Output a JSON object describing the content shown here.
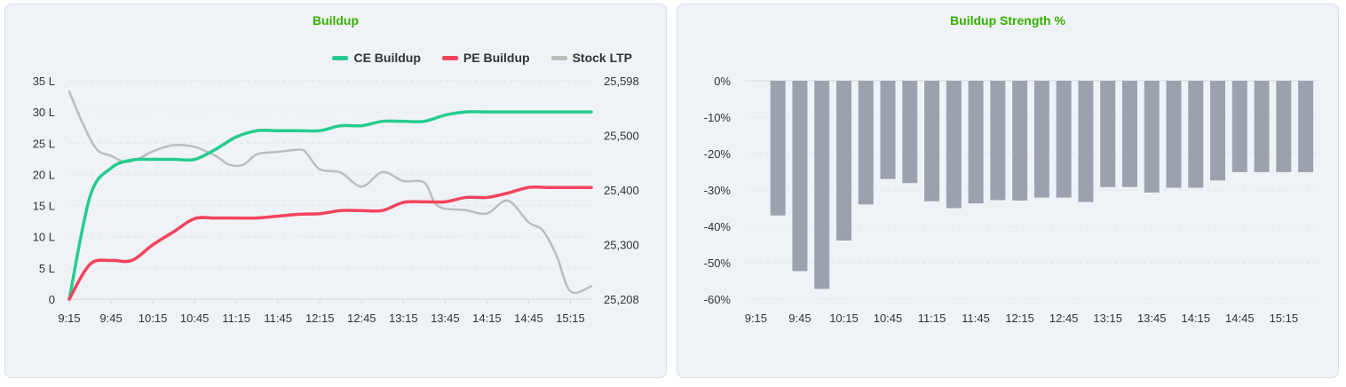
{
  "colors": {
    "ce": "#26cc8e",
    "pe": "#f2445b",
    "stock": "#bdbdbd",
    "bar": "#9ca2ad",
    "title": "#36b000"
  },
  "chart_data": [
    {
      "type": "line",
      "title": "Buildup",
      "legend_position": "top-right",
      "grid": true,
      "x_ticks": [
        "9:15",
        "9:45",
        "10:15",
        "10:45",
        "11:15",
        "11:45",
        "12:15",
        "12:45",
        "13:15",
        "13:45",
        "14:15",
        "14:45",
        "15:15"
      ],
      "y_left": {
        "ticks": [
          "0",
          "5 L",
          "10 L",
          "15 L",
          "20 L",
          "25 L",
          "30 L",
          "35 L"
        ],
        "range": [
          0,
          35
        ],
        "unit": "L"
      },
      "y_right": {
        "ticks": [
          "25,208",
          "25,300",
          "25,400",
          "25,500",
          "25,598"
        ],
        "range": [
          25208,
          25598
        ]
      },
      "series": [
        {
          "name": "CE Buildup",
          "axis": "left",
          "x": [
            "9:15",
            "9:30",
            "9:45",
            "10:00",
            "10:15",
            "10:30",
            "10:45",
            "11:00",
            "11:15",
            "11:30",
            "11:45",
            "12:00",
            "12:15",
            "12:30",
            "12:45",
            "13:00",
            "13:15",
            "13:30",
            "13:45",
            "14:00",
            "14:15",
            "14:30",
            "14:45",
            "15:00",
            "15:15",
            "15:30"
          ],
          "values": [
            0,
            16.5,
            21,
            22.3,
            22.4,
            22.4,
            22.4,
            24,
            26,
            27,
            27,
            27,
            27,
            27.8,
            27.8,
            28.5,
            28.5,
            28.5,
            29.5,
            30,
            30,
            30,
            30,
            30,
            30,
            30
          ]
        },
        {
          "name": "PE Buildup",
          "axis": "left",
          "x": [
            "9:15",
            "9:30",
            "9:45",
            "10:00",
            "10:15",
            "10:30",
            "10:45",
            "11:00",
            "11:15",
            "11:30",
            "11:45",
            "12:00",
            "12:15",
            "12:30",
            "12:45",
            "13:00",
            "13:15",
            "13:30",
            "13:45",
            "14:00",
            "14:15",
            "14:30",
            "14:45",
            "15:00",
            "15:15",
            "15:30"
          ],
          "values": [
            0,
            5.6,
            6.2,
            6.2,
            8.7,
            10.8,
            12.9,
            13,
            13,
            13,
            13.3,
            13.6,
            13.7,
            14.2,
            14.2,
            14.2,
            15.5,
            15.6,
            15.6,
            16.3,
            16.3,
            17,
            17.9,
            17.9,
            17.9,
            17.9
          ]
        },
        {
          "name": "Stock LTP",
          "axis": "right",
          "x": [
            "9:15",
            "9:25",
            "9:35",
            "9:45",
            "9:55",
            "10:05",
            "10:15",
            "10:30",
            "10:45",
            "11:00",
            "11:10",
            "11:20",
            "11:30",
            "11:45",
            "12:00",
            "12:05",
            "12:15",
            "12:30",
            "12:45",
            "13:00",
            "13:15",
            "13:30",
            "13:40",
            "14:00",
            "14:15",
            "14:30",
            "14:45",
            "14:55",
            "15:05",
            "15:15",
            "15:30"
          ],
          "values": [
            25579,
            25520,
            25475,
            25464,
            25453,
            25459,
            25472,
            25483,
            25480,
            25464,
            25448,
            25448,
            25467,
            25471,
            25475,
            25470,
            25440,
            25434,
            25409,
            25435,
            25419,
            25416,
            25374,
            25367,
            25361,
            25384,
            25345,
            25331,
            25286,
            25222,
            25231
          ]
        }
      ]
    },
    {
      "type": "bar",
      "title": "Buildup Strength %",
      "grid": true,
      "x_ticks": [
        "9:15",
        "9:45",
        "10:15",
        "10:45",
        "11:15",
        "11:45",
        "12:15",
        "12:45",
        "13:15",
        "13:45",
        "14:15",
        "14:45",
        "15:15"
      ],
      "y_ticks": [
        "0%",
        "-10%",
        "-20%",
        "-30%",
        "-40%",
        "-50%",
        "-60%"
      ],
      "ylim": [
        -60,
        0
      ],
      "categories": [
        "9:15",
        "9:30",
        "9:45",
        "10:00",
        "10:15",
        "10:30",
        "10:45",
        "11:00",
        "11:15",
        "11:30",
        "11:45",
        "12:00",
        "12:15",
        "12:30",
        "12:45",
        "13:00",
        "13:15",
        "13:30",
        "13:45",
        "14:00",
        "14:15",
        "14:30",
        "14:45",
        "15:00",
        "15:15",
        "15:30"
      ],
      "values": [
        null,
        -37,
        -52.3,
        -57.2,
        -43.9,
        -34,
        -27,
        -28.1,
        -33.1,
        -35,
        -33.7,
        -32.8,
        -32.9,
        -32.1,
        -32.1,
        -33.3,
        -29.2,
        -29.2,
        -30.7,
        -29.4,
        -29.4,
        -27.4,
        -25.1,
        -25.1,
        -25.1,
        -25.1
      ]
    }
  ]
}
